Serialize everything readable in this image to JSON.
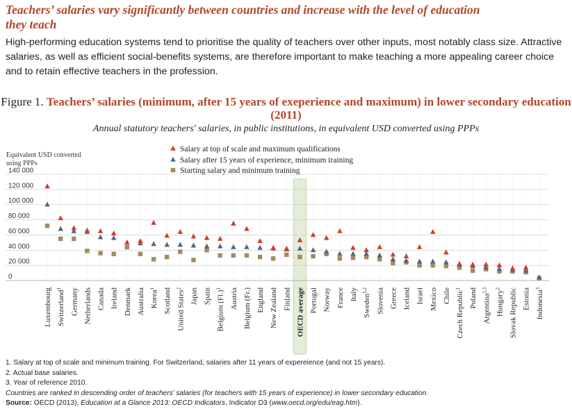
{
  "headline": "Teachers’ salaries vary significantly between countries and increase with the level of education they teach",
  "intro": "High-performing education systems tend to prioritise the quality of teachers over other inputs, most notably class size. Attractive salaries, as well as efficient social-benefits systems, are therefore important to make teaching a more appealing career choice and to retain effective teachers in the profession.",
  "figure": {
    "prefix": "Figure 1.",
    "title": "Teachers’ salaries (minimum, after 15 years of exeperience and maximum) in lower secondary education (2011)",
    "subtitle": "Annual statutory teachers' salaries, in public institutions, in equivalent USD converted using PPPs"
  },
  "notes": {
    "note1": "1. Salary at top of scale and minimum training. For Switzerland, salaries after 11 years of expereience (and not 15 years).",
    "note2": "2. Actual base salaries.",
    "note3": "3. Year of reference 2010.",
    "ranking": "Countries are ranked in descending order of teachers’ salaries (for teachers with 15 years of experience) in lower secondary education.",
    "source_label": "Source:",
    "source_pre": " OECD (2013), ",
    "source_title": "Education at a Glance 2013: OECD Indicators",
    "source_post": ", Indicator D3 (",
    "source_url": "www.oecd.org/edu/eag.htm",
    "source_end": ")."
  },
  "colors": {
    "maximum": "#d93a2b",
    "fifteen": "#4d6a82",
    "starting": "#a58a5e",
    "oecd_highlight": "#e4edd7",
    "headline": "#b2462a"
  },
  "chart_data": {
    "type": "scatter",
    "ylabel": "Equivalent USD converted using PPPs",
    "ylim": [
      0,
      140000
    ],
    "yticks": [
      0,
      20000,
      40000,
      60000,
      80000,
      100000,
      120000,
      140000
    ],
    "ytick_labels": [
      "0",
      "20 000",
      "40 000",
      "60 000",
      "80 000",
      "100 000",
      "120 000",
      "140 000"
    ],
    "grid": true,
    "legend_position": "top-center",
    "highlight": "OECD average",
    "categories": [
      {
        "name": "Luxembourg",
        "sup": ""
      },
      {
        "name": "Switzerland",
        "sup": "1"
      },
      {
        "name": "Germany",
        "sup": ""
      },
      {
        "name": "Netherlands",
        "sup": ""
      },
      {
        "name": "Canada",
        "sup": ""
      },
      {
        "name": "Ireland",
        "sup": ""
      },
      {
        "name": "Denmark",
        "sup": ""
      },
      {
        "name": "Australia",
        "sup": ""
      },
      {
        "name": "Korea",
        "sup": "1"
      },
      {
        "name": "Scotland",
        "sup": ""
      },
      {
        "name": "United States",
        "sup": "2"
      },
      {
        "name": "Japan",
        "sup": ""
      },
      {
        "name": "Spain",
        "sup": ""
      },
      {
        "name": "Belgium (Fl.)",
        "sup": "1"
      },
      {
        "name": "Austria",
        "sup": ""
      },
      {
        "name": "Belgium (Fr.)",
        "sup": ""
      },
      {
        "name": "England",
        "sup": ""
      },
      {
        "name": "New Zealand",
        "sup": ""
      },
      {
        "name": "Finland",
        "sup": ""
      },
      {
        "name": "OECD average",
        "sup": ""
      },
      {
        "name": "Portugal",
        "sup": ""
      },
      {
        "name": "Norway",
        "sup": ""
      },
      {
        "name": "France",
        "sup": ""
      },
      {
        "name": "Italy",
        "sup": ""
      },
      {
        "name": "Sweden",
        "sup": "1,2"
      },
      {
        "name": "Slovenia",
        "sup": ""
      },
      {
        "name": "Greece",
        "sup": ""
      },
      {
        "name": "Iceland",
        "sup": ""
      },
      {
        "name": "Israel",
        "sup": ""
      },
      {
        "name": "Mexico",
        "sup": ""
      },
      {
        "name": "Chile",
        "sup": ""
      },
      {
        "name": "Czech Republic",
        "sup": "1"
      },
      {
        "name": "Poland",
        "sup": ""
      },
      {
        "name": "Argentina",
        "sup": "2,3"
      },
      {
        "name": "Hungary",
        "sup": "2"
      },
      {
        "name": "Slovak Republic",
        "sup": ""
      },
      {
        "name": "Estonia",
        "sup": ""
      },
      {
        "name": "Indonesia",
        "sup": "3"
      }
    ],
    "series": [
      {
        "name": "Salary at top of scale and maximum qualifications",
        "marker": "triangle",
        "color": "#d93a2b",
        "values": [
          124000,
          82000,
          69000,
          66000,
          65000,
          62000,
          50000,
          52000,
          76000,
          59000,
          64000,
          58000,
          56000,
          55000,
          75000,
          68000,
          52000,
          43000,
          42000,
          53000,
          60000,
          56000,
          65000,
          43000,
          40000,
          44000,
          34000,
          32000,
          44000,
          64000,
          37000,
          22000,
          21000,
          21000,
          20000,
          16000,
          17000,
          null
        ]
      },
      {
        "name": "Salary after 15 years of experience, minimum training",
        "marker": "triangle",
        "color": "#4d6a82",
        "values": [
          100000,
          68000,
          65000,
          64000,
          57000,
          56000,
          50000,
          49000,
          48000,
          47000,
          47000,
          46000,
          45000,
          45000,
          44000,
          44000,
          43000,
          42000,
          41000,
          42000,
          40000,
          38000,
          35000,
          35000,
          35000,
          33000,
          28000,
          26000,
          25000,
          25000,
          24000,
          21000,
          19000,
          17000,
          15000,
          14000,
          13000,
          4000
        ]
      },
      {
        "name": "Starting salary and minimum training",
        "marker": "square",
        "color": "#a58a5e",
        "values": [
          72000,
          55000,
          55000,
          39000,
          36000,
          35000,
          44000,
          35000,
          28000,
          31000,
          38000,
          27000,
          40000,
          33000,
          33000,
          33000,
          31000,
          29000,
          34000,
          31000,
          32000,
          35000,
          29000,
          30000,
          31000,
          28000,
          23000,
          24000,
          20000,
          20000,
          19000,
          17000,
          13000,
          15000,
          12000,
          12000,
          11000,
          3000
        ]
      }
    ]
  }
}
